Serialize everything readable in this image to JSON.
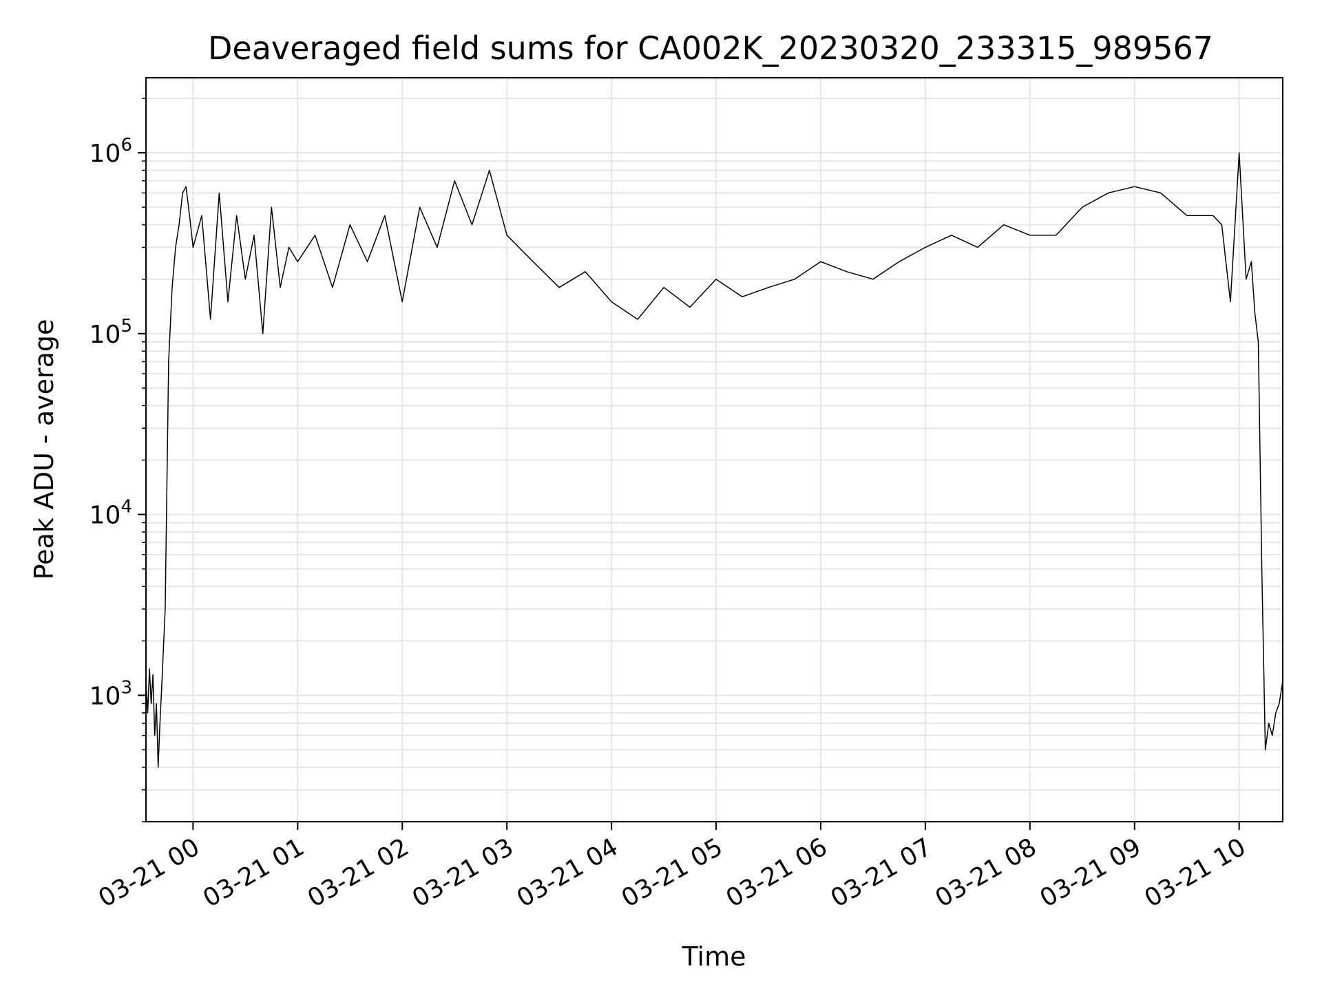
{
  "chart_data": {
    "type": "line",
    "title": "Deaveraged field sums for CA002K_20230320_233315_989567",
    "xlabel": "Time",
    "ylabel": "Peak ADU - average",
    "yscale": "log",
    "ylim": [
      200,
      2600000
    ],
    "xlim": [
      "2023-03-20 23:33",
      "2023-03-21 10:25"
    ],
    "grid": true,
    "line_color": "#000000",
    "grid_color": "#e5e5e5",
    "x_ticks": [
      {
        "value": "2023-03-21 00:00",
        "label": "03-21 00"
      },
      {
        "value": "2023-03-21 01:00",
        "label": "03-21 01"
      },
      {
        "value": "2023-03-21 02:00",
        "label": "03-21 02"
      },
      {
        "value": "2023-03-21 03:00",
        "label": "03-21 03"
      },
      {
        "value": "2023-03-21 04:00",
        "label": "03-21 04"
      },
      {
        "value": "2023-03-21 05:00",
        "label": "03-21 05"
      },
      {
        "value": "2023-03-21 06:00",
        "label": "03-21 06"
      },
      {
        "value": "2023-03-21 07:00",
        "label": "03-21 07"
      },
      {
        "value": "2023-03-21 08:00",
        "label": "03-21 08"
      },
      {
        "value": "2023-03-21 09:00",
        "label": "03-21 09"
      },
      {
        "value": "2023-03-21 10:00",
        "label": "03-21 10"
      }
    ],
    "y_ticks": [
      {
        "value": 1000,
        "base": "10",
        "exp": "3"
      },
      {
        "value": 10000,
        "base": "10",
        "exp": "4"
      },
      {
        "value": 100000,
        "base": "10",
        "exp": "5"
      },
      {
        "value": 1000000,
        "base": "10",
        "exp": "6"
      }
    ],
    "series": [
      {
        "x": [
          "2023-03-20 23:33",
          "2023-03-20 23:34",
          "2023-03-20 23:35",
          "2023-03-20 23:36",
          "2023-03-20 23:37",
          "2023-03-20 23:38",
          "2023-03-20 23:39",
          "2023-03-20 23:40",
          "2023-03-20 23:41",
          "2023-03-20 23:42",
          "2023-03-20 23:44",
          "2023-03-20 23:46",
          "2023-03-20 23:48",
          "2023-03-20 23:50",
          "2023-03-20 23:52",
          "2023-03-20 23:54",
          "2023-03-20 23:56",
          "2023-03-20 23:58",
          "2023-03-21 00:00",
          "2023-03-21 00:05",
          "2023-03-21 00:10",
          "2023-03-21 00:15",
          "2023-03-21 00:20",
          "2023-03-21 00:25",
          "2023-03-21 00:30",
          "2023-03-21 00:35",
          "2023-03-21 00:40",
          "2023-03-21 00:45",
          "2023-03-21 00:50",
          "2023-03-21 00:55",
          "2023-03-21 01:00",
          "2023-03-21 01:10",
          "2023-03-21 01:20",
          "2023-03-21 01:30",
          "2023-03-21 01:40",
          "2023-03-21 01:50",
          "2023-03-21 02:00",
          "2023-03-21 02:10",
          "2023-03-21 02:20",
          "2023-03-21 02:30",
          "2023-03-21 02:40",
          "2023-03-21 02:50",
          "2023-03-21 03:00",
          "2023-03-21 03:15",
          "2023-03-21 03:30",
          "2023-03-21 03:45",
          "2023-03-21 04:00",
          "2023-03-21 04:15",
          "2023-03-21 04:30",
          "2023-03-21 04:45",
          "2023-03-21 05:00",
          "2023-03-21 05:15",
          "2023-03-21 05:30",
          "2023-03-21 05:45",
          "2023-03-21 06:00",
          "2023-03-21 06:15",
          "2023-03-21 06:30",
          "2023-03-21 06:45",
          "2023-03-21 07:00",
          "2023-03-21 07:15",
          "2023-03-21 07:30",
          "2023-03-21 07:45",
          "2023-03-21 08:00",
          "2023-03-21 08:15",
          "2023-03-21 08:30",
          "2023-03-21 08:45",
          "2023-03-21 09:00",
          "2023-03-21 09:15",
          "2023-03-21 09:30",
          "2023-03-21 09:45",
          "2023-03-21 09:50",
          "2023-03-21 09:55",
          "2023-03-21 10:00",
          "2023-03-21 10:04",
          "2023-03-21 10:07",
          "2023-03-21 10:09",
          "2023-03-21 10:11",
          "2023-03-21 10:13",
          "2023-03-21 10:15",
          "2023-03-21 10:17",
          "2023-03-21 10:19",
          "2023-03-21 10:21",
          "2023-03-21 10:23",
          "2023-03-21 10:25"
        ],
        "values": [
          1200,
          800,
          1400,
          900,
          1300,
          600,
          900,
          400,
          700,
          1100,
          3000,
          70000,
          180000,
          300000,
          400000,
          600000,
          650000,
          450000,
          300000,
          450000,
          120000,
          600000,
          150000,
          450000,
          200000,
          350000,
          100000,
          500000,
          180000,
          300000,
          250000,
          350000,
          180000,
          400000,
          250000,
          450000,
          150000,
          500000,
          300000,
          700000,
          400000,
          800000,
          350000,
          250000,
          180000,
          220000,
          150000,
          120000,
          180000,
          140000,
          200000,
          160000,
          180000,
          200000,
          250000,
          220000,
          200000,
          250000,
          300000,
          350000,
          300000,
          400000,
          350000,
          350000,
          500000,
          600000,
          650000,
          600000,
          450000,
          450000,
          400000,
          150000,
          1000000,
          200000,
          250000,
          130000,
          90000,
          5000,
          500,
          700,
          600,
          800,
          900,
          1200
        ]
      }
    ]
  }
}
